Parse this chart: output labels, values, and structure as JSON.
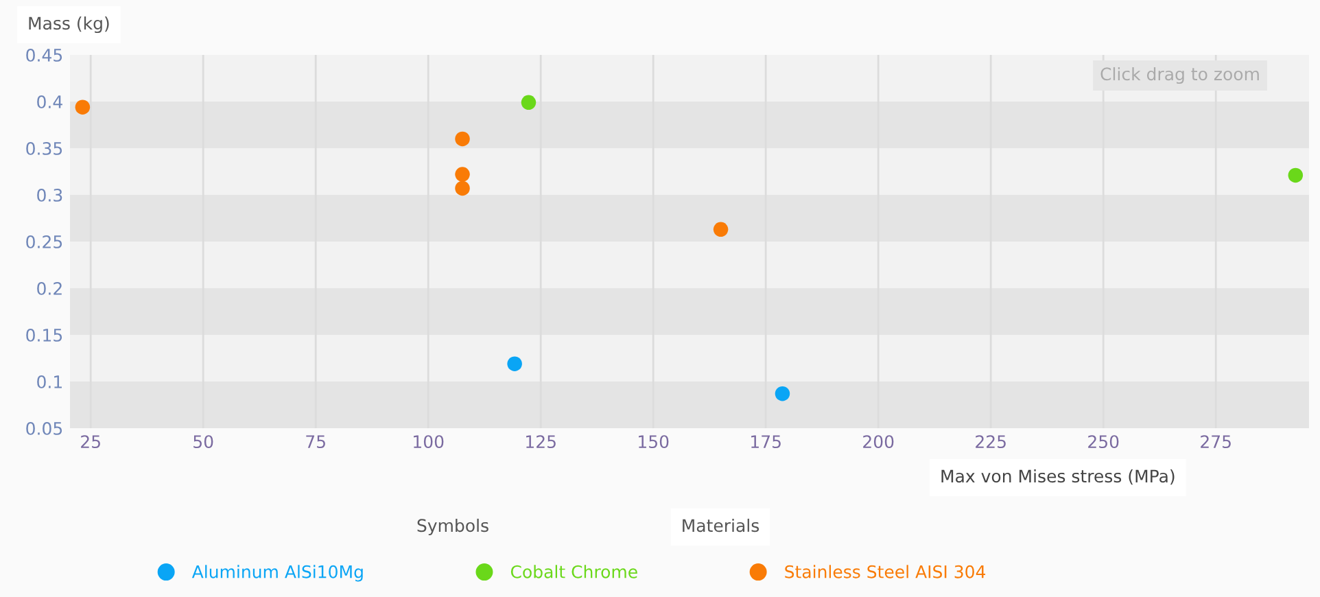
{
  "chart_data": {
    "type": "scatter",
    "ylabel": "Mass (kg)",
    "xlabel": "Max von Mises stress (MPa)",
    "xlim": [
      20.4,
      295.7
    ],
    "xticks": [
      25,
      50,
      75,
      100,
      125,
      150,
      175,
      200,
      225,
      250,
      275
    ],
    "ylim": [
      0.05,
      0.45
    ],
    "yticks": [
      0.05,
      0.1,
      0.15,
      0.2,
      0.25,
      0.3,
      0.35,
      0.4,
      0.45
    ],
    "grid": "x",
    "marker": "circle",
    "legend": "bottom",
    "bands": [
      {
        "axis": "y",
        "from": 0.05,
        "to": 0.1,
        "color": "#e4e4e4"
      },
      {
        "axis": "y",
        "from": 0.15,
        "to": 0.2,
        "color": "#e4e4e4"
      },
      {
        "axis": "y",
        "from": 0.25,
        "to": 0.3,
        "color": "#e4e4e4"
      },
      {
        "axis": "y",
        "from": 0.35,
        "to": 0.4,
        "color": "#e4e4e4"
      }
    ],
    "annotations": [
      "Click drag to zoom",
      "Symbols",
      "Materials"
    ],
    "series": [
      {
        "name": "Aluminum AlSi10Mg",
        "color": "#0aa5f5",
        "x": [
          119.2,
          178.7
        ],
        "values": [
          0.119,
          0.087
        ]
      },
      {
        "name": "Cobalt Chrome",
        "color": "#6ad81a",
        "x": [
          122.3,
          292.7
        ],
        "values": [
          0.399,
          0.321
        ]
      },
      {
        "name": "Stainless Steel AISI 304",
        "color": "#f97b06",
        "x": [
          23.2,
          107.6,
          107.6,
          107.6,
          165.0
        ],
        "values": [
          0.394,
          0.36,
          0.322,
          0.307,
          0.263
        ]
      }
    ]
  }
}
